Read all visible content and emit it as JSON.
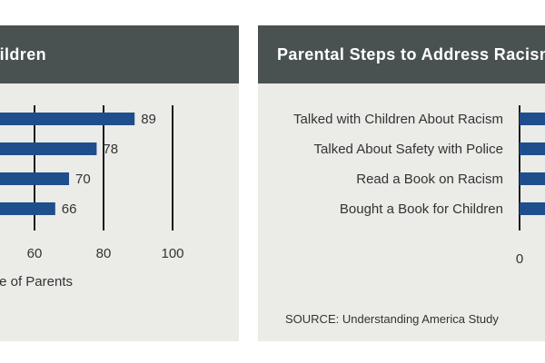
{
  "chart_data": [
    {
      "type": "bar",
      "orientation": "horizontal",
      "title": "Children",
      "values": [
        89,
        78,
        70,
        66
      ],
      "xticks": [
        60,
        80,
        100
      ],
      "xlabel": "Percentage of Parents",
      "xlim": [
        0,
        100
      ],
      "grid": true,
      "bar_color": "#1f4e8c"
    },
    {
      "type": "bar",
      "orientation": "horizontal",
      "title": "Parental Steps to Address Racism",
      "categories": [
        "Talked with Children About Racism",
        "Talked About Safety with Police",
        "Read a Book on Racism",
        "Bought a Book for Children"
      ],
      "xticks": [
        0
      ],
      "xlim": [
        0,
        100
      ],
      "grid": true,
      "bar_color": "#1f4e8c",
      "source": "SOURCE: Understanding America Study"
    }
  ]
}
